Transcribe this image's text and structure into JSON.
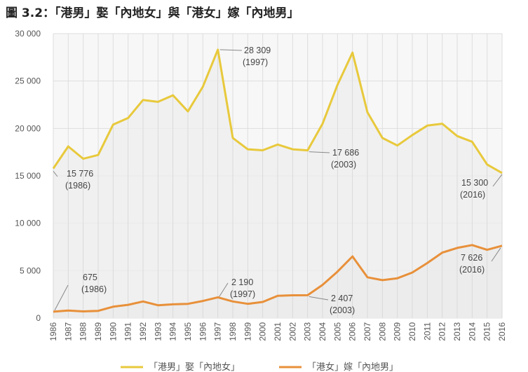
{
  "title": "圖 3.2：「港男」娶「內地女」與「港女」嫁「內地男」",
  "chart_data": {
    "type": "area",
    "x": [
      "1986",
      "1987",
      "1988",
      "1989",
      "1990",
      "1991",
      "1992",
      "1993",
      "1994",
      "1995",
      "1996",
      "1997",
      "1998",
      "1999",
      "2000",
      "2001",
      "2002",
      "2003",
      "2004",
      "2005",
      "2006",
      "2007",
      "2008",
      "2009",
      "2010",
      "2011",
      "2012",
      "2013",
      "2014",
      "2015",
      "2016"
    ],
    "ylim": [
      0,
      30000
    ],
    "yticks": [
      "0",
      "5 000",
      "10 000",
      "15 000",
      "20 000",
      "25 000",
      "30 000"
    ],
    "series": [
      {
        "name": "「港男」娶「內地女」",
        "color": "#e8c93c",
        "values": [
          15776,
          18100,
          16800,
          17200,
          20400,
          21100,
          23000,
          22800,
          23500,
          21800,
          24400,
          28309,
          19000,
          17800,
          17700,
          18300,
          17800,
          17686,
          20500,
          24600,
          28000,
          21700,
          19000,
          18200,
          19300,
          20300,
          20500,
          19200,
          18600,
          16200,
          15300
        ]
      },
      {
        "name": "「港女」嫁「內地男」",
        "color": "#e8903a",
        "values": [
          675,
          800,
          700,
          760,
          1200,
          1400,
          1750,
          1350,
          1450,
          1500,
          1800,
          2190,
          1750,
          1500,
          1700,
          2350,
          2400,
          2407,
          3500,
          4900,
          6500,
          4300,
          4000,
          4200,
          4800,
          5800,
          6900,
          7400,
          7700,
          7200,
          7626
        ]
      }
    ],
    "annotations": [
      {
        "value": "15 776",
        "year": "(1986)"
      },
      {
        "value": "28 309",
        "year": "(1997)"
      },
      {
        "value": "17 686",
        "year": "(2003)"
      },
      {
        "value": "15 300",
        "year": "(2016)"
      },
      {
        "value": "675",
        "year": "(1986)"
      },
      {
        "value": "2 190",
        "year": "(1997)"
      },
      {
        "value": "2 407",
        "year": "(2003)"
      },
      {
        "value": "7 626",
        "year": "(2016)"
      }
    ],
    "legend_position": "bottom",
    "grid": true
  }
}
